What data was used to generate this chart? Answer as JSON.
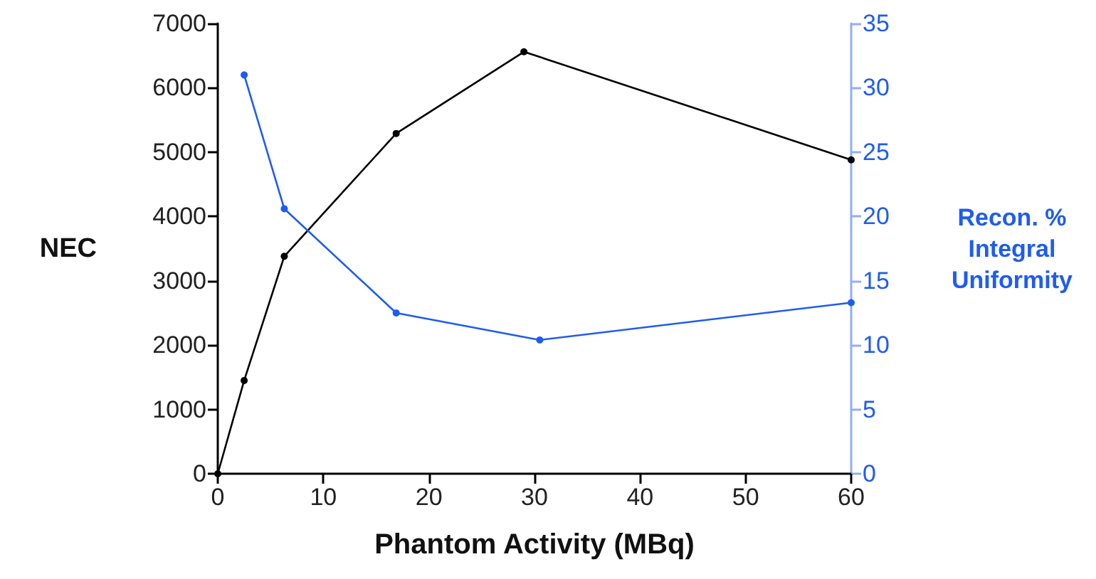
{
  "chart_data": {
    "type": "line",
    "xlabel": "Phantom Activity (MBq)",
    "ylabel": "NEC",
    "y2label": "Recon. %\nIntegral\nUniformity",
    "series": [
      {
        "color": "#000000",
        "x": [
          0,
          2.5,
          6.3,
          16.9,
          29,
          60
        ],
        "values": [
          0,
          1450,
          3380,
          5290,
          6560,
          4880
        ]
      },
      {
        "color": "#1f5cf0",
        "axis": "y2",
        "x": [
          2.5,
          6.3,
          16.9,
          30.5,
          60
        ],
        "values": [
          31,
          20.6,
          12.5,
          10.4,
          13.3
        ]
      }
    ],
    "xlim": [
      0,
      60
    ],
    "xticks": [
      0,
      10,
      20,
      30,
      40,
      50,
      60
    ],
    "ylim": [
      0,
      7000
    ],
    "yticks": [
      0,
      1000,
      2000,
      3000,
      4000,
      5000,
      6000,
      7000
    ],
    "y2lim": [
      0,
      35
    ],
    "y2ticks": [
      0,
      5,
      10,
      15,
      20,
      25,
      30,
      35
    ],
    "grid": false,
    "marker": "circle",
    "line_style": "solid"
  }
}
